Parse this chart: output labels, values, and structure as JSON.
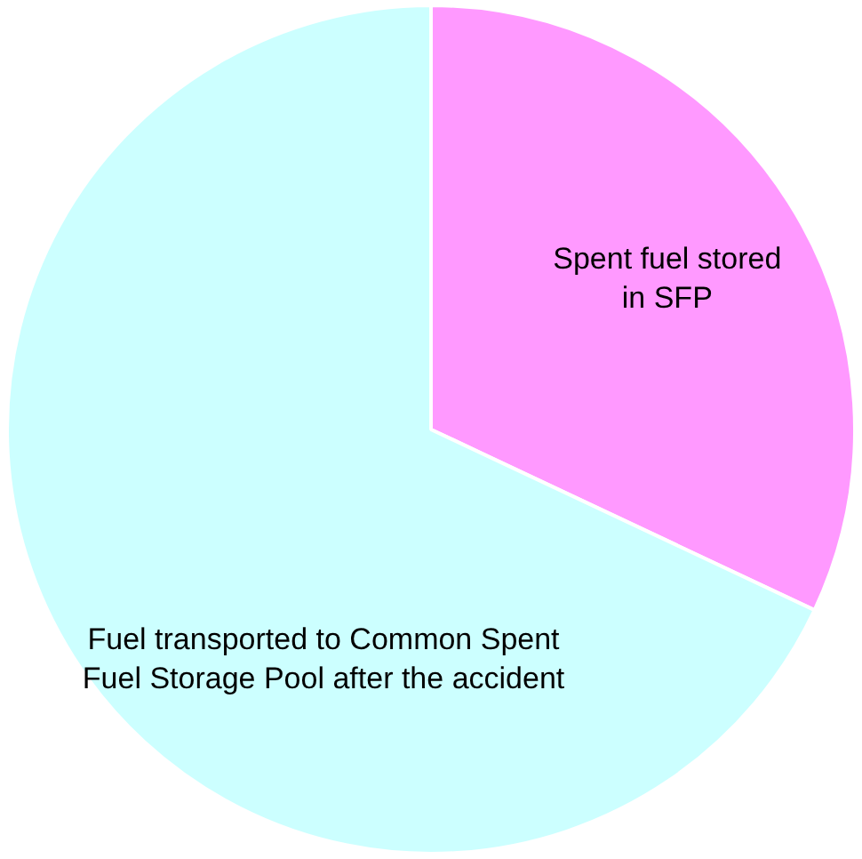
{
  "chart_data": {
    "type": "pie",
    "categories": [
      "Spent fuel stored in SFP",
      "Fuel transported to Common Spent Fuel Storage Pool after the accident"
    ],
    "values": [
      32,
      68
    ],
    "colors": [
      "#ff99ff",
      "#ccffff"
    ],
    "legend": false
  }
}
